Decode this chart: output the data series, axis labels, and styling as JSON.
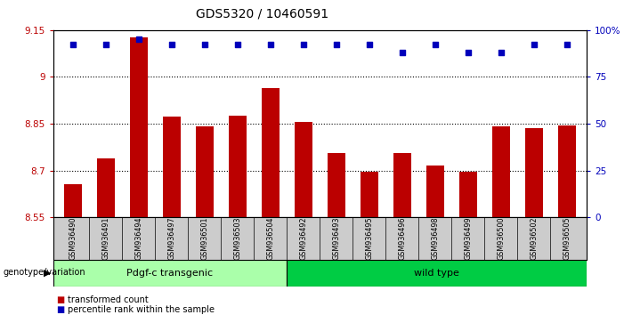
{
  "title": "GDS5320 / 10460591",
  "samples": [
    "GSM936490",
    "GSM936491",
    "GSM936494",
    "GSM936497",
    "GSM936501",
    "GSM936503",
    "GSM936504",
    "GSM936492",
    "GSM936493",
    "GSM936495",
    "GSM936496",
    "GSM936498",
    "GSM936499",
    "GSM936500",
    "GSM936502",
    "GSM936505"
  ],
  "bar_values": [
    8.655,
    8.74,
    9.125,
    8.872,
    8.84,
    8.875,
    8.965,
    8.855,
    8.755,
    8.695,
    8.755,
    8.715,
    8.695,
    8.84,
    8.835,
    8.845
  ],
  "percentile_y": [
    92,
    92,
    95,
    92,
    92,
    92,
    92,
    92,
    92,
    92,
    88,
    92,
    88,
    88,
    92,
    92
  ],
  "bar_color": "#bb0000",
  "percentile_color": "#0000bb",
  "ylim_left": [
    8.55,
    9.15
  ],
  "ylim_right": [
    0,
    100
  ],
  "yticks_left": [
    8.55,
    8.7,
    8.85,
    9.0,
    9.15
  ],
  "ytick_labels_left": [
    "8.55",
    "8.7",
    "8.85",
    "9",
    "9.15"
  ],
  "yticks_right": [
    0,
    25,
    50,
    75,
    100
  ],
  "ytick_labels_right": [
    "0",
    "25",
    "50",
    "75",
    "100%"
  ],
  "gridlines": [
    8.7,
    8.85,
    9.0
  ],
  "group1_label": "Pdgf-c transgenic",
  "group1_count": 7,
  "group2_label": "wild type",
  "group2_count": 9,
  "group1_color": "#aaffaa",
  "group2_color": "#00cc44",
  "genotype_label": "genotype/variation",
  "legend_bar_label": "transformed count",
  "legend_dot_label": "percentile rank within the sample",
  "bg_color": "#ffffff",
  "tick_area_color": "#cccccc"
}
